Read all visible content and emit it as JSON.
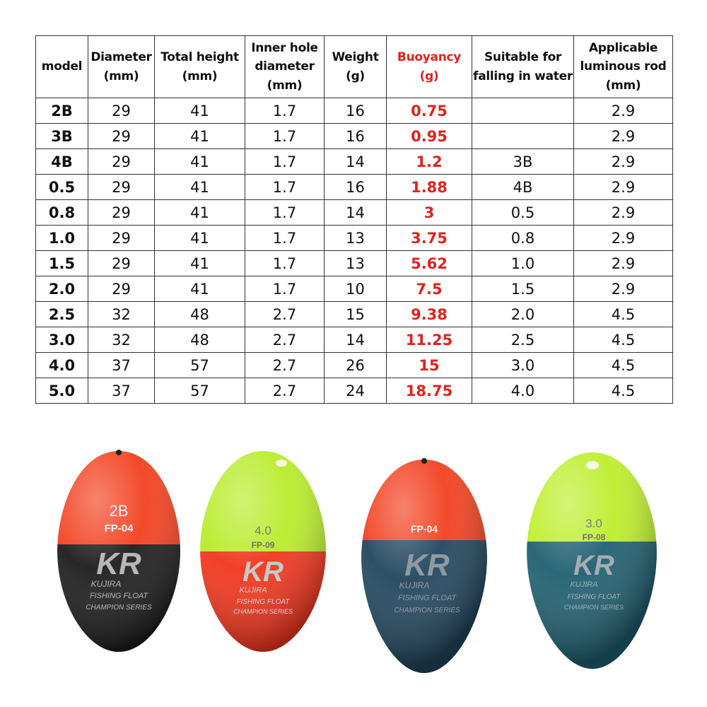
{
  "table": {
    "headers": [
      "model",
      "Diameter\n(mm)",
      "Total height\n(mm)",
      "Inner hole\ndiameter\n(mm)",
      "Weight\n(g)",
      "Buoyancy\n(g)",
      "Suitable for\nfalling in water",
      "Applicable\nluminous rod\n(mm)"
    ],
    "highlight_color": "#e0231d",
    "rows": [
      [
        "2B",
        "29",
        "41",
        "1.7",
        "16",
        "0.75",
        "",
        "2.9"
      ],
      [
        "3B",
        "29",
        "41",
        "1.7",
        "16",
        "0.95",
        "",
        "2.9"
      ],
      [
        "4B",
        "29",
        "41",
        "1.7",
        "14",
        "1.2",
        "3B",
        "2.9"
      ],
      [
        "0.5",
        "29",
        "41",
        "1.7",
        "16",
        "1.88",
        "4B",
        "2.9"
      ],
      [
        "0.8",
        "29",
        "41",
        "1.7",
        "14",
        "3",
        "0.5",
        "2.9"
      ],
      [
        "1.0",
        "29",
        "41",
        "1.7",
        "13",
        "3.75",
        "0.8",
        "2.9"
      ],
      [
        "1.5",
        "29",
        "41",
        "1.7",
        "13",
        "5.62",
        "1.0",
        "2.9"
      ],
      [
        "2.0",
        "29",
        "41",
        "1.7",
        "10",
        "7.5",
        "1.5",
        "2.9"
      ],
      [
        "2.5",
        "32",
        "48",
        "2.7",
        "15",
        "9.38",
        "2.0",
        "4.5"
      ],
      [
        "3.0",
        "32",
        "48",
        "2.7",
        "14",
        "11.25",
        "2.5",
        "4.5"
      ],
      [
        "4.0",
        "37",
        "57",
        "2.7",
        "26",
        "15",
        "3.0",
        "4.5"
      ],
      [
        "5.0",
        "37",
        "57",
        "2.7",
        "24",
        "18.75",
        "4.0",
        "4.5"
      ]
    ]
  },
  "floats": [
    {
      "size": "2B",
      "code": "FP-04",
      "brand": "KUJIRA",
      "line1": "FISHING FLOAT",
      "line2": "CHAMPION SERIES",
      "top_color": "#f2401f",
      "bottom_color": "#1c1c1c"
    },
    {
      "size": "4.0",
      "code": "FP-09",
      "brand": "KUJIRA",
      "line1": "FISHING FLOAT",
      "line2": "CHAMPION SERIES",
      "top_color": "#b8ec2a",
      "bottom_color": "#f2341c"
    },
    {
      "size": "",
      "code": "FP-04",
      "brand": "KUJIRA",
      "line1": "FISHING FLOAT",
      "line2": "CHAMPION SERIES",
      "top_color": "#f2401f",
      "bottom_color": "#21465e"
    },
    {
      "size": "3.0",
      "code": "FP-08",
      "brand": "KUJIRA",
      "line1": "FISHING FLOAT",
      "line2": "CHAMPION SERIES",
      "top_color": "#bdee2c",
      "bottom_color": "#1f5f70"
    }
  ]
}
